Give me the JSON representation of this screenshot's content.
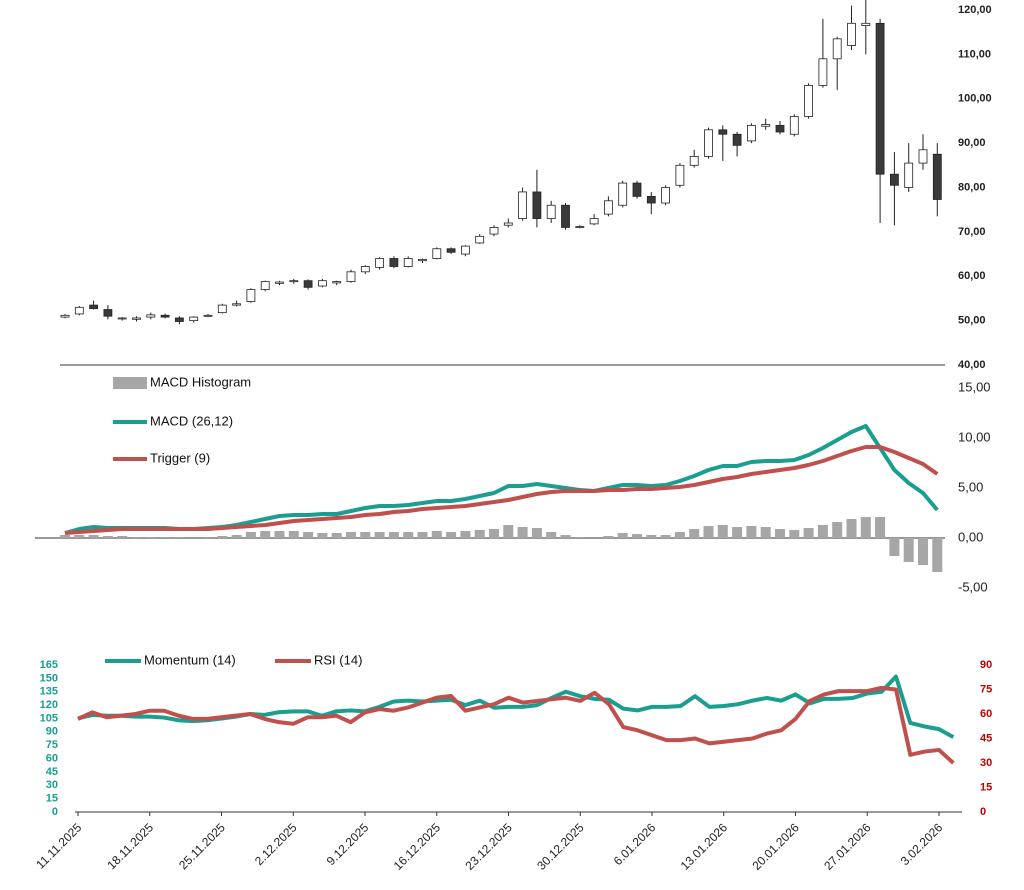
{
  "chart_data": [
    {
      "type": "candlestick",
      "ylim": [
        40,
        120
      ],
      "yticks": [
        {
          "value": 40,
          "label": "40,00"
        },
        {
          "value": 50,
          "label": "50,00"
        },
        {
          "value": 60,
          "label": "60,00"
        },
        {
          "value": 70,
          "label": "70,00"
        },
        {
          "value": 80,
          "label": "80,00"
        },
        {
          "value": 90,
          "label": "90,00"
        },
        {
          "value": 100,
          "label": "100,00"
        },
        {
          "value": 110,
          "label": "110,00"
        },
        {
          "value": 120,
          "label": "120,00"
        }
      ],
      "up_color": "#ffffff",
      "down_color": "#3a3a3a",
      "outline_color": "#222222",
      "open": [
        50.8,
        51.5,
        53.5,
        52.5,
        50.4,
        50.3,
        50.8,
        51.2,
        50.6,
        50,
        51,
        51.8,
        53.5,
        54.3,
        57,
        58.4,
        58.8,
        59,
        57.8,
        58.5,
        58.8,
        61,
        62,
        64,
        62.2,
        63.5,
        64,
        66.2,
        65,
        67.5,
        69.5,
        71.5,
        73,
        79,
        73,
        76,
        71,
        71.8,
        74,
        76,
        81,
        78,
        76.5,
        80.5,
        85,
        87,
        93,
        92,
        90.5,
        93.8,
        94,
        92,
        96,
        103,
        109,
        112,
        116.5,
        117,
        83,
        80,
        85.5,
        87.5
      ],
      "high": [
        51.5,
        53.3,
        54.5,
        53.5,
        50.8,
        51,
        51.8,
        51.6,
        51,
        51,
        51.5,
        53.8,
        54.5,
        57.3,
        59,
        59,
        59.4,
        59.3,
        59.4,
        59,
        61.5,
        62.5,
        64.3,
        64.5,
        64.5,
        64,
        66.5,
        66.5,
        67,
        69.5,
        71.5,
        73,
        80,
        84,
        77,
        76.5,
        71.5,
        74,
        78,
        81.5,
        81.5,
        79,
        80.5,
        85.5,
        88.5,
        93.5,
        94,
        92.5,
        94.5,
        95.5,
        95,
        96.5,
        103.5,
        118,
        114,
        121,
        122.5,
        118,
        88,
        90,
        92,
        90
      ],
      "low": [
        50.5,
        51.2,
        52.5,
        50.3,
        50,
        49.8,
        50.3,
        50.5,
        49.2,
        49.6,
        50.8,
        51.6,
        53.2,
        54,
        56.6,
        58,
        58.3,
        57,
        57.5,
        58,
        58.5,
        60.5,
        61.5,
        61.8,
        62,
        63,
        63.8,
        65,
        64.5,
        67.3,
        69,
        71,
        72.5,
        71,
        72,
        70.5,
        70.8,
        71.5,
        73.5,
        75.5,
        77.5,
        74,
        76,
        80,
        84.5,
        86.5,
        86,
        87,
        90,
        93,
        92,
        91.5,
        95.5,
        102.5,
        102,
        111,
        110,
        72,
        71.5,
        79,
        84,
        73.5
      ],
      "close": [
        51.2,
        53,
        52.7,
        51,
        50.6,
        50.6,
        51.3,
        50.8,
        49.8,
        50.8,
        51.2,
        53.5,
        53.8,
        57,
        58.8,
        58.7,
        59,
        57.5,
        59,
        58.8,
        61,
        62.2,
        64,
        62.2,
        64,
        63.8,
        66.2,
        65.4,
        66.8,
        69,
        71,
        72,
        79,
        73,
        76,
        71,
        71.2,
        73,
        77,
        81,
        78,
        76.5,
        80,
        85,
        87,
        93,
        92,
        89.5,
        94,
        94.2,
        92.5,
        96,
        103,
        109,
        113.5,
        117,
        117,
        83,
        80.5,
        85.5,
        88.5,
        77.3
      ]
    },
    {
      "type": "macd",
      "ylim": [
        -7,
        16.5
      ],
      "yticks": [
        {
          "value": -5,
          "label": "-5,00"
        },
        {
          "value": 0,
          "label": "0,00"
        },
        {
          "value": 5,
          "label": "5,00"
        },
        {
          "value": 10,
          "label": "10,00"
        },
        {
          "value": 15,
          "label": "15,00"
        }
      ],
      "series": [
        {
          "name": "MACD Histogram",
          "kind": "bar",
          "color": "#a6a6a6",
          "values": [
            0.3,
            0.3,
            0.3,
            0.2,
            0.2,
            0.1,
            0.1,
            0.1,
            0.1,
            0.0,
            0.1,
            0.2,
            0.3,
            0.6,
            0.7,
            0.7,
            0.7,
            0.6,
            0.5,
            0.5,
            0.6,
            0.6,
            0.6,
            0.6,
            0.6,
            0.6,
            0.7,
            0.6,
            0.7,
            0.8,
            0.9,
            1.3,
            1.1,
            1.0,
            0.6,
            0.3,
            0.1,
            0.0,
            0.2,
            0.5,
            0.4,
            0.3,
            0.3,
            0.6,
            0.9,
            1.2,
            1.3,
            1.1,
            1.2,
            1.1,
            0.9,
            0.8,
            1.0,
            1.3,
            1.6,
            1.9,
            2.1,
            2.1,
            -1.8,
            -2.4,
            -2.7,
            -3.4
          ]
        },
        {
          "name": "MACD (26,12)",
          "kind": "line",
          "color": "#1a9e8f",
          "values": [
            0.5,
            0.9,
            1.1,
            1.0,
            1.0,
            1.0,
            1.0,
            1.0,
            0.9,
            0.9,
            1.0,
            1.1,
            1.3,
            1.6,
            1.9,
            2.2,
            2.3,
            2.3,
            2.4,
            2.4,
            2.7,
            3.0,
            3.2,
            3.2,
            3.3,
            3.5,
            3.7,
            3.7,
            3.9,
            4.2,
            4.5,
            5.2,
            5.2,
            5.4,
            5.2,
            5.0,
            4.8,
            4.7,
            5.0,
            5.3,
            5.3,
            5.2,
            5.3,
            5.7,
            6.2,
            6.8,
            7.2,
            7.2,
            7.6,
            7.7,
            7.7,
            7.8,
            8.3,
            9.0,
            9.8,
            10.6,
            11.2,
            9.0,
            6.8,
            5.5,
            4.5,
            2.8
          ]
        },
        {
          "name": "Trigger (9)",
          "kind": "line",
          "color": "#c0504d",
          "values": [
            0.5,
            0.6,
            0.7,
            0.8,
            0.9,
            0.9,
            0.9,
            0.9,
            0.9,
            0.9,
            0.9,
            1.0,
            1.1,
            1.2,
            1.3,
            1.5,
            1.7,
            1.8,
            1.9,
            2.0,
            2.1,
            2.3,
            2.4,
            2.6,
            2.7,
            2.9,
            3.0,
            3.1,
            3.2,
            3.4,
            3.6,
            3.8,
            4.1,
            4.4,
            4.6,
            4.7,
            4.7,
            4.7,
            4.8,
            4.8,
            4.9,
            4.9,
            5.0,
            5.1,
            5.3,
            5.6,
            5.9,
            6.1,
            6.4,
            6.6,
            6.8,
            7.0,
            7.3,
            7.7,
            8.2,
            8.7,
            9.1,
            9.1,
            8.6,
            8.0,
            7.4,
            6.4
          ]
        }
      ]
    },
    {
      "type": "line",
      "categories": [
        "11.11.2025",
        null,
        null,
        null,
        null,
        "18.11.2025",
        null,
        null,
        null,
        null,
        "25.11.2025",
        null,
        null,
        null,
        null,
        "2.12.2025",
        null,
        null,
        null,
        null,
        "9.12.2025",
        null,
        null,
        null,
        null,
        "16.12.2025",
        null,
        null,
        null,
        null,
        "23.12.2025",
        null,
        null,
        null,
        null,
        "30.12.2025",
        null,
        null,
        null,
        null,
        "6.01.2026",
        null,
        null,
        null,
        null,
        "13.01.2026",
        null,
        null,
        null,
        null,
        "20.01.2026",
        null,
        null,
        null,
        null,
        "27.01.2026",
        null,
        null,
        null,
        null,
        "3.02.2026",
        null
      ],
      "ylim": [
        0,
        165
      ],
      "yticks": [
        0,
        15,
        30,
        45,
        60,
        75,
        90,
        105,
        120,
        135,
        150,
        165
      ],
      "ytick_color": "#1a9e8f",
      "y2lim": [
        0,
        90
      ],
      "y2ticks": [
        0,
        15,
        30,
        45,
        60,
        75,
        90
      ],
      "y2tick_color": "#c00000",
      "series": [
        {
          "name": "Momentum (14)",
          "color": "#1a9e8f",
          "values": [
            105,
            109,
            108,
            108,
            107,
            107,
            106,
            103,
            102,
            103,
            105,
            107,
            110,
            109,
            112,
            113,
            113,
            108,
            113,
            114,
            113,
            118,
            124,
            125,
            124,
            125,
            126,
            120,
            125,
            117,
            118,
            118,
            120,
            128,
            135,
            130,
            127,
            126,
            116,
            114,
            118,
            118,
            119,
            130,
            118,
            119,
            121,
            125,
            128,
            125,
            132,
            122,
            127,
            127,
            128,
            133,
            135,
            152,
            100,
            96,
            93,
            84
          ]
        },
        {
          "name": "RSI (14)",
          "axis": "y2",
          "color": "#c0504d",
          "values": [
            57,
            61,
            58,
            59,
            60,
            62,
            62,
            59,
            57,
            57,
            58,
            59,
            60,
            57,
            55,
            54,
            58,
            58,
            59,
            55,
            61,
            63,
            62,
            64,
            67,
            70,
            71,
            62,
            64,
            66,
            70,
            67,
            68,
            69,
            70,
            68,
            73,
            66,
            52,
            50,
            47,
            44,
            44,
            45,
            42,
            43,
            44,
            45,
            48,
            50,
            57,
            68,
            72,
            74,
            74,
            74,
            76,
            75,
            35,
            37,
            38,
            30
          ]
        }
      ]
    }
  ]
}
